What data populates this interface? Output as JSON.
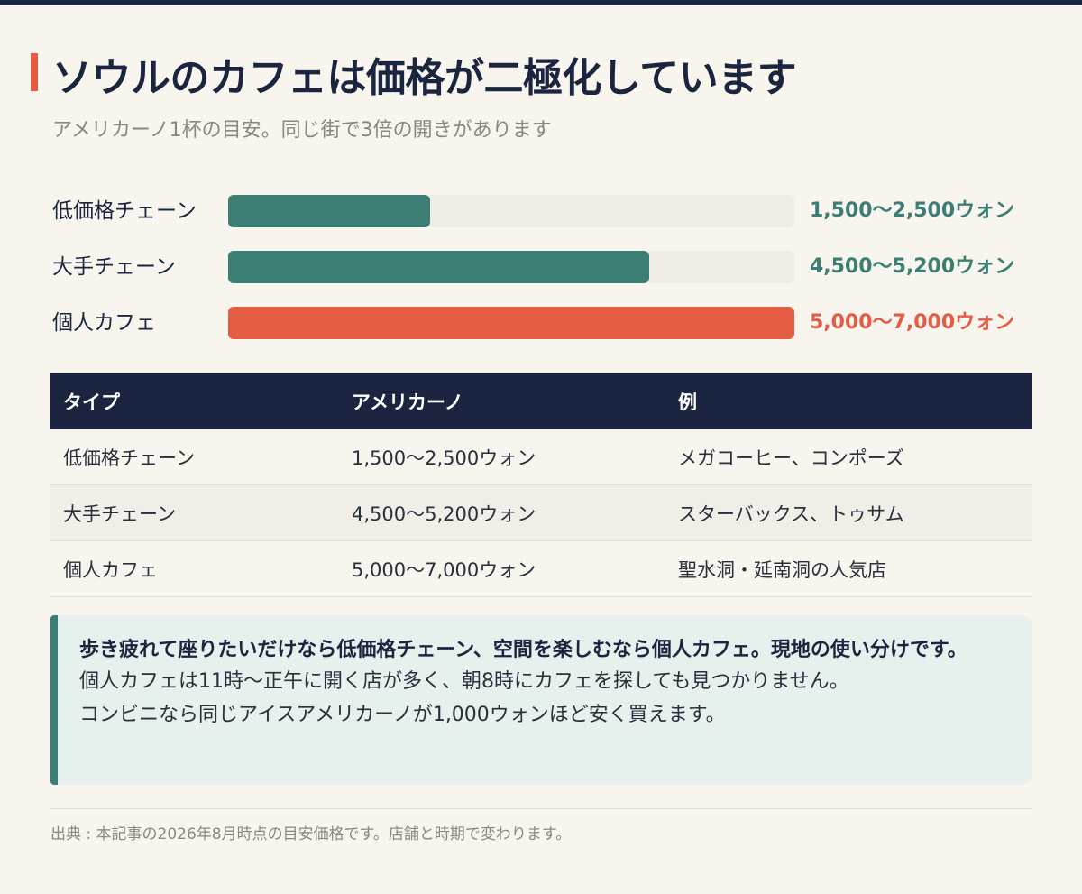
{
  "header": {
    "title": "ソウルのカフェは価格が二極化しています",
    "subtitle": "アメリカーノ1杯の目安。同じ街で3倍の開きがあります"
  },
  "colors": {
    "navy": "#1b2540",
    "teal": "#3d7e74",
    "coral": "#e55c45",
    "track": "#efece6"
  },
  "chart_data": {
    "type": "bar",
    "orientation": "horizontal",
    "categories": [
      "低価格チェーン",
      "大手チェーン",
      "個人カフェ"
    ],
    "ranges": [
      [
        1500,
        2500
      ],
      [
        4500,
        5200
      ],
      [
        5000,
        7000
      ]
    ],
    "values": [
      2500,
      5200,
      7000
    ],
    "value_labels": [
      "1,500〜2,500ウォン",
      "4,500〜5,200ウォン",
      "5,000〜7,000ウォン"
    ],
    "bar_colors": [
      "#3d7e74",
      "#3d7e74",
      "#e55c45"
    ],
    "xlim": [
      0,
      7000
    ]
  },
  "table": {
    "headers": [
      "タイプ",
      "アメリカーノ",
      "例"
    ],
    "rows": [
      [
        "低価格チェーン",
        "1,500〜2,500ウォン",
        "メガコーヒー、コンポーズ"
      ],
      [
        "大手チェーン",
        "4,500〜5,200ウォン",
        "スターバックス、トゥサム"
      ],
      [
        "個人カフェ",
        "5,000〜7,000ウォン",
        "聖水洞・延南洞の人気店"
      ]
    ]
  },
  "note": {
    "strong": "歩き疲れて座りたいだけなら低価格チェーン、空間を楽しむなら個人カフェ。現地の使い分けです。",
    "line1": "個人カフェは11時〜正午に開く店が多く、朝8時にカフェを探しても見つかりません。",
    "line2": "コンビニなら同じアイスアメリカーノが1,000ウォンほど安く買えます。"
  },
  "footer": {
    "source": "出典 : 本記事の2026年8月時点の目安価格です。店舗と時期で変わります。"
  }
}
